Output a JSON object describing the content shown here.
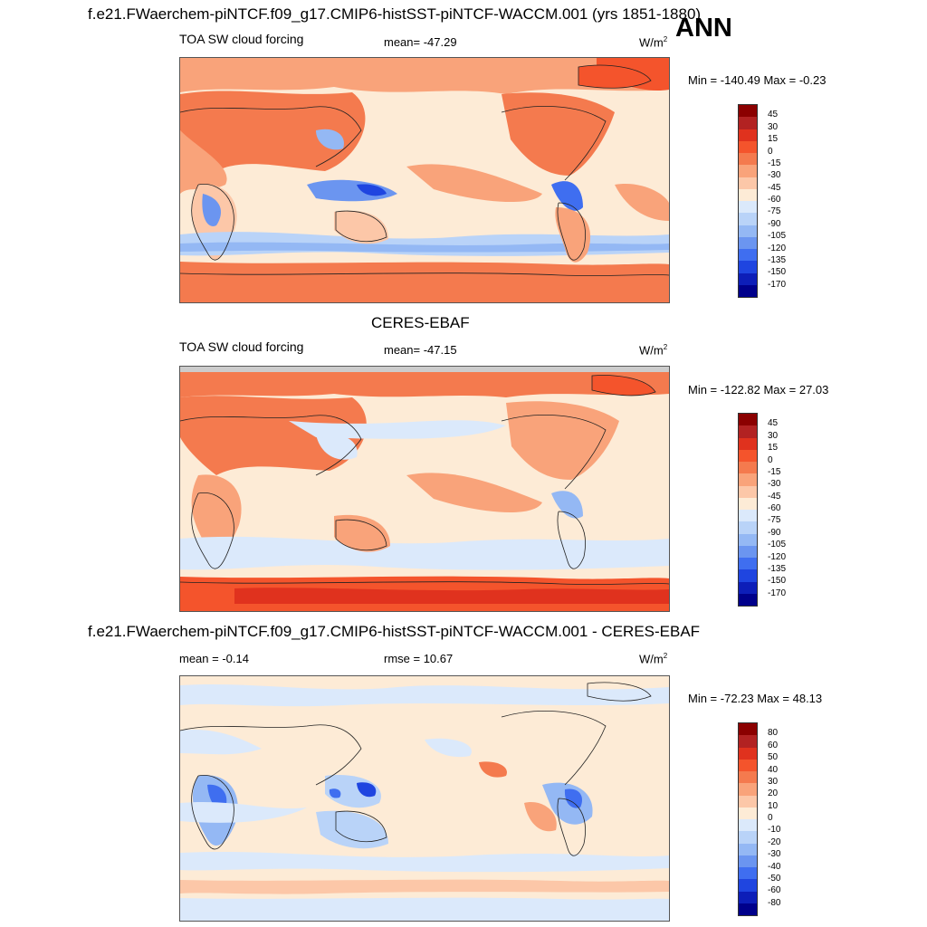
{
  "header": {
    "title": "f.e21.FWaerchem-piNTCF.f09_g17.CMIP6-histSST-piNTCF-WACCM.001 (yrs 1851-1880)",
    "season": "ANN"
  },
  "panels": [
    {
      "id": "model",
      "variable": "TOA SW cloud forcing",
      "stat": "mean= -47.29",
      "units": "W/m",
      "units_exp": "2",
      "minmax": "Min = -140.49 Max =  -0.23",
      "colorbar_labels": [
        "45",
        "30",
        "15",
        "0",
        "-15",
        "-30",
        "-45",
        "-60",
        "-75",
        "-90",
        "-105",
        "-120",
        "-135",
        "-150",
        "-170"
      ],
      "colorbar_colors": [
        "#8b0000",
        "#b22222",
        "#e0321e",
        "#f4542c",
        "#f47a4e",
        "#f9a37a",
        "#fcc7a8",
        "#fdebd6",
        "#dbe9fb",
        "#b9d3f8",
        "#94b8f4",
        "#6b95f0",
        "#3f6ef0",
        "#1f45e0",
        "#0d1eb8",
        "#00008b"
      ]
    },
    {
      "id": "obs",
      "title": "CERES-EBAF",
      "variable": "TOA SW cloud forcing",
      "stat": "mean= -47.15",
      "units": "W/m",
      "units_exp": "2",
      "minmax": "Min = -122.82 Max =  27.03",
      "colorbar_labels": [
        "45",
        "30",
        "15",
        "0",
        "-15",
        "-30",
        "-45",
        "-60",
        "-75",
        "-90",
        "-105",
        "-120",
        "-135",
        "-150",
        "-170"
      ],
      "colorbar_colors": [
        "#8b0000",
        "#b22222",
        "#e0321e",
        "#f4542c",
        "#f47a4e",
        "#f9a37a",
        "#fcc7a8",
        "#fdebd6",
        "#dbe9fb",
        "#b9d3f8",
        "#94b8f4",
        "#6b95f0",
        "#3f6ef0",
        "#1f45e0",
        "#0d1eb8",
        "#00008b"
      ]
    },
    {
      "id": "diff",
      "title": "f.e21.FWaerchem-piNTCF.f09_g17.CMIP6-histSST-piNTCF-WACCM.001 - CERES-EBAF",
      "stat_left": "mean =  -0.14",
      "stat_mid": "rmse =  10.67",
      "units": "W/m",
      "units_exp": "2",
      "minmax": "Min = -72.23 Max =  48.13",
      "colorbar_labels": [
        "80",
        "60",
        "50",
        "40",
        "30",
        "20",
        "10",
        "0",
        "-10",
        "-20",
        "-30",
        "-40",
        "-50",
        "-60",
        "-80"
      ],
      "colorbar_colors": [
        "#8b0000",
        "#b22222",
        "#e0321e",
        "#f4542c",
        "#f47a4e",
        "#f9a37a",
        "#fcc7a8",
        "#fdebd6",
        "#dbe9fb",
        "#b9d3f8",
        "#94b8f4",
        "#6b95f0",
        "#3f6ef0",
        "#1f45e0",
        "#0d1eb8",
        "#00008b"
      ]
    }
  ]
}
